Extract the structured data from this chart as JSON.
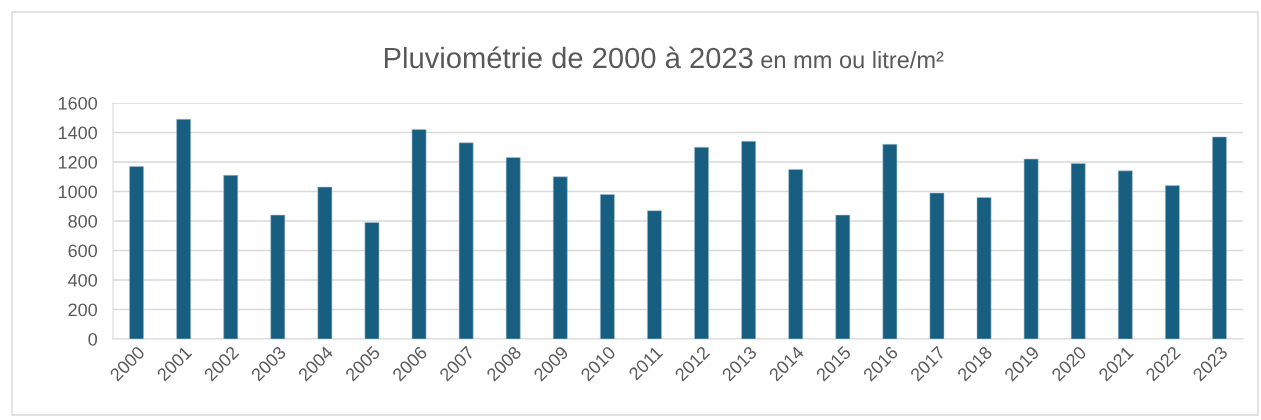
{
  "chart_data": {
    "type": "bar",
    "title": "Pluviométrie de 2000 à 2023",
    "subtitle": "en mm ou litre/m²",
    "categories": [
      "2000",
      "2001",
      "2002",
      "2003",
      "2004",
      "2005",
      "2006",
      "2007",
      "2008",
      "2009",
      "2010",
      "2011",
      "2012",
      "2013",
      "2014",
      "2015",
      "2016",
      "2017",
      "2018",
      "2019",
      "2020",
      "2021",
      "2022",
      "2023"
    ],
    "values": [
      1170,
      1490,
      1110,
      840,
      1030,
      790,
      1420,
      1330,
      1230,
      1100,
      980,
      870,
      1300,
      1340,
      1150,
      840,
      1320,
      990,
      960,
      1220,
      1190,
      1140,
      1040,
      1370
    ],
    "color": "#175e80",
    "ylim": [
      0,
      1600
    ],
    "yticks": [
      0,
      200,
      400,
      600,
      800,
      1000,
      1200,
      1400,
      1600
    ],
    "grid": "y"
  }
}
